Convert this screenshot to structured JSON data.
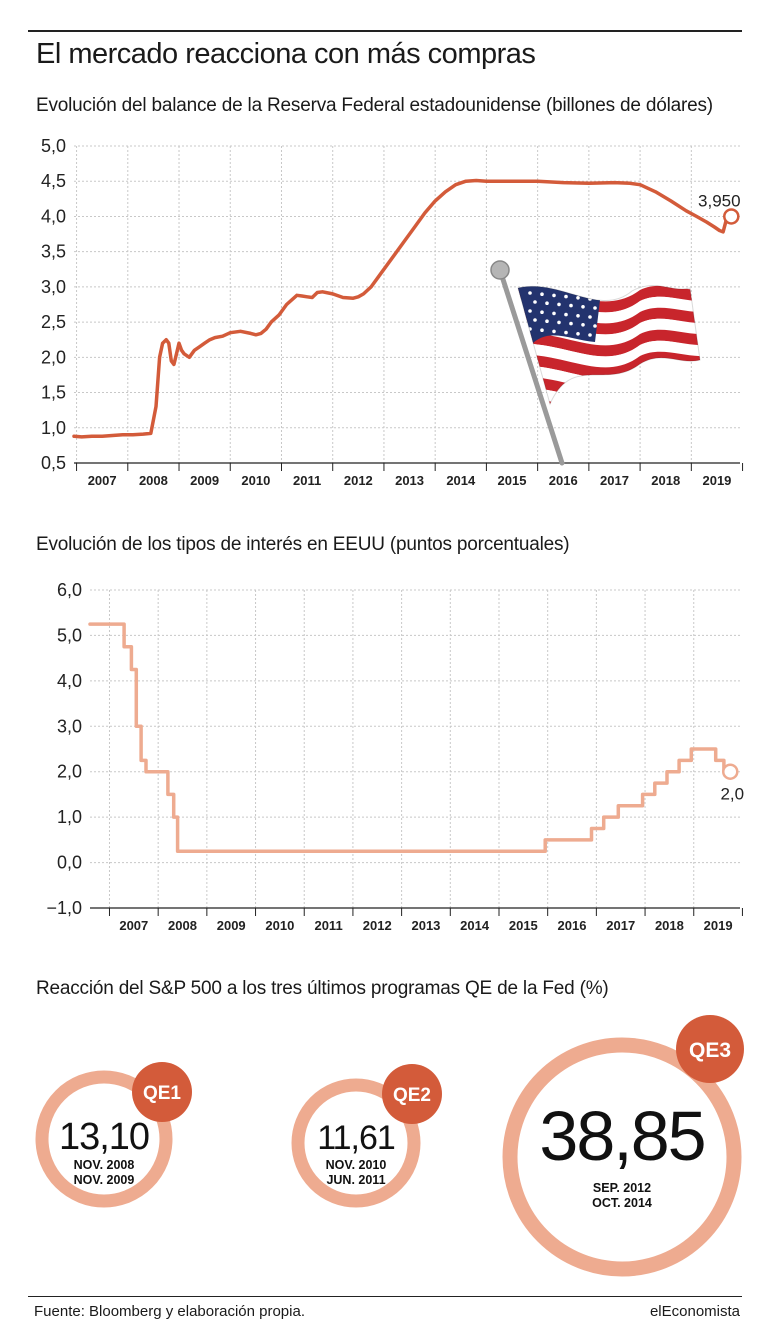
{
  "header": {
    "title": "El mercado reacciona con más compras"
  },
  "colors": {
    "balance_line": "#d35b3a",
    "rates_line": "#eeab90",
    "grid": "#c8c8c8",
    "qe_ring": "#eeab90",
    "qe_badge": "#d35b3a"
  },
  "chart_data": [
    {
      "type": "line",
      "title": "Evolución del balance de la Reserva Federal estadounidense (billones de dólares)",
      "yticks": [
        "5,0",
        "4,5",
        "4,0",
        "3,5",
        "3,0",
        "2,5",
        "2,0",
        "1,5",
        "1,0",
        "0,5"
      ],
      "xticks": [
        "2007",
        "2008",
        "2009",
        "2010",
        "2011",
        "2012",
        "2013",
        "2014",
        "2015",
        "2016",
        "2017",
        "2018",
        "2019"
      ],
      "ylim": [
        0.5,
        5.0
      ],
      "xlim": [
        2006.95,
        2019.95
      ],
      "grid": true,
      "annotation": {
        "label": "3,950",
        "x": 2019.78,
        "y": 4.0
      },
      "decoration": "us-flag",
      "series": [
        {
          "x": [
            2006.95,
            2007.1,
            2007.3,
            2007.5,
            2007.7,
            2007.9,
            2008.1,
            2008.3,
            2008.45,
            2008.55,
            2008.62,
            2008.68,
            2008.75,
            2008.8,
            2008.85,
            2008.9,
            2008.95,
            2009.0,
            2009.05,
            2009.1,
            2009.2,
            2009.3,
            2009.4,
            2009.5,
            2009.6,
            2009.7,
            2009.85,
            2010.0,
            2010.2,
            2010.4,
            2010.5,
            2010.6,
            2010.7,
            2010.8,
            2010.95,
            2011.1,
            2011.3,
            2011.4,
            2011.5,
            2011.6,
            2011.7,
            2011.8,
            2012.0,
            2012.2,
            2012.4,
            2012.5,
            2012.6,
            2012.75,
            2012.9,
            2013.0,
            2013.2,
            2013.4,
            2013.6,
            2013.8,
            2014.0,
            2014.2,
            2014.4,
            2014.6,
            2014.8,
            2015.0,
            2015.5,
            2016.0,
            2016.5,
            2017.0,
            2017.5,
            2017.8,
            2018.0,
            2018.3,
            2018.6,
            2018.9,
            2019.1,
            2019.3,
            2019.45,
            2019.55,
            2019.62,
            2019.7
          ],
          "values": [
            0.88,
            0.87,
            0.88,
            0.88,
            0.89,
            0.9,
            0.9,
            0.91,
            0.92,
            1.3,
            2.0,
            2.2,
            2.25,
            2.2,
            1.95,
            1.9,
            2.05,
            2.2,
            2.1,
            2.05,
            2.0,
            2.1,
            2.15,
            2.2,
            2.25,
            2.28,
            2.3,
            2.35,
            2.37,
            2.34,
            2.32,
            2.34,
            2.4,
            2.5,
            2.6,
            2.75,
            2.88,
            2.87,
            2.86,
            2.85,
            2.92,
            2.93,
            2.9,
            2.85,
            2.84,
            2.86,
            2.9,
            3.0,
            3.15,
            3.25,
            3.45,
            3.65,
            3.85,
            4.05,
            4.22,
            4.35,
            4.45,
            4.5,
            4.51,
            4.5,
            4.5,
            4.5,
            4.48,
            4.47,
            4.48,
            4.47,
            4.45,
            4.35,
            4.22,
            4.08,
            4.0,
            3.92,
            3.85,
            3.8,
            3.78,
            4.0
          ]
        }
      ]
    },
    {
      "type": "line",
      "title": "Evolución de los tipos de interés en EEUU (puntos porcentuales)",
      "yticks": [
        "6,0",
        "5,0",
        "4,0",
        "3,0",
        "2,0",
        "1,0",
        "0,0",
        "−1,0"
      ],
      "xticks": [
        "2007",
        "2008",
        "2009",
        "2010",
        "2011",
        "2012",
        "2013",
        "2014",
        "2015",
        "2016",
        "2017",
        "2018",
        "2019"
      ],
      "ylim": [
        -1.0,
        6.0
      ],
      "xlim": [
        2006.6,
        2019.95
      ],
      "grid": true,
      "annotation": {
        "label": "2,0",
        "x": 2019.75,
        "y": 2.0
      },
      "series": [
        {
          "step": true,
          "x": [
            2006.6,
            2007.3,
            2007.45,
            2007.55,
            2007.65,
            2007.75,
            2007.82,
            2008.2,
            2008.32,
            2008.4,
            2008.5,
            2015.95,
            2016.9,
            2017.15,
            2017.45,
            2017.95,
            2018.2,
            2018.45,
            2018.7,
            2018.95,
            2019.45,
            2019.62,
            2019.72
          ],
          "values": [
            5.25,
            4.75,
            4.25,
            3.0,
            2.25,
            2.0,
            2.0,
            1.5,
            1.0,
            0.25,
            0.25,
            0.5,
            0.75,
            1.0,
            1.25,
            1.5,
            1.75,
            2.0,
            2.25,
            2.5,
            2.25,
            2.0,
            2.0
          ]
        }
      ]
    }
  ],
  "qe": {
    "title": "Reacción del S&P 500 a los tres últimos programas QE de la Fed (%)",
    "items": [
      {
        "badge": "QE1",
        "value": "13,10",
        "date_start": "NOV. 2008",
        "date_end": "NOV. 2009"
      },
      {
        "badge": "QE2",
        "value": "11,61",
        "date_start": "NOV. 2010",
        "date_end": "JUN. 2011"
      },
      {
        "badge": "QE3",
        "value": "38,85",
        "date_start": "SEP. 2012",
        "date_end": "OCT. 2014"
      }
    ]
  },
  "footer": {
    "source": "Fuente: Bloomberg y elaboración propia.",
    "brand": "elEconomista"
  }
}
